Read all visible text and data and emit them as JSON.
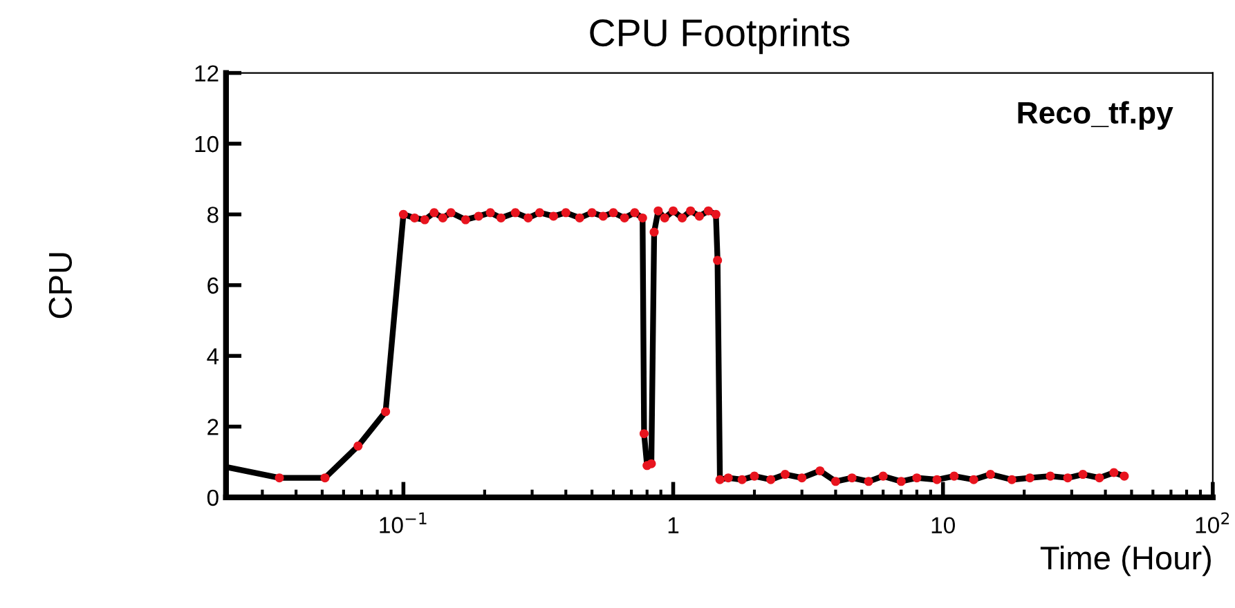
{
  "chart_data": {
    "type": "line",
    "title": "CPU Footprints",
    "xlabel": "Time (Hour)",
    "ylabel": "CPU",
    "log": "x",
    "xlim": [
      0.022,
      100
    ],
    "xticks": [
      {
        "value": 0.1,
        "label": "10$^{−1}$"
      },
      1,
      10,
      {
        "value": 100,
        "label": "10$^{2}$"
      }
    ],
    "ylim": [
      0,
      12
    ],
    "yticks": [
      0,
      2,
      4,
      6,
      8,
      10,
      12
    ],
    "grid": false,
    "legend": false,
    "annotations": [
      "Reco_tf.py"
    ],
    "series": [
      {
        "type": "line",
        "color": "#000000",
        "marker": "none",
        "line_style": "solid",
        "x": [
          0.022,
          0.0347,
          0.0512,
          0.0679,
          0.0859,
          0.1,
          0.11,
          0.12,
          0.13,
          0.14,
          0.15,
          0.17,
          0.19,
          0.21,
          0.23,
          0.26,
          0.29,
          0.32,
          0.36,
          0.4,
          0.45,
          0.5,
          0.55,
          0.6,
          0.66,
          0.72,
          0.77,
          0.78,
          0.8,
          0.83,
          0.85,
          0.88,
          0.93,
          1.0,
          1.08,
          1.16,
          1.25,
          1.35,
          1.44,
          1.46,
          1.49,
          1.6,
          1.8,
          2.0,
          2.3,
          2.6,
          3.0,
          3.5,
          4.0,
          4.6,
          5.3,
          6,
          7,
          8,
          9.5,
          11,
          13,
          15,
          18,
          21,
          25,
          29,
          33,
          38,
          43,
          47
        ],
        "values": [
          0.86,
          0.55,
          0.55,
          1.45,
          2.42,
          8.0,
          7.9,
          7.85,
          8.05,
          7.9,
          8.05,
          7.85,
          7.95,
          8.05,
          7.9,
          8.05,
          7.9,
          8.05,
          7.95,
          8.05,
          7.9,
          8.05,
          7.95,
          8.05,
          7.9,
          8.05,
          7.9,
          1.8,
          0.9,
          0.95,
          7.5,
          8.1,
          7.9,
          8.1,
          7.9,
          8.1,
          7.95,
          8.1,
          8.0,
          6.7,
          0.5,
          0.55,
          0.5,
          0.6,
          0.5,
          0.65,
          0.55,
          0.75,
          0.45,
          0.55,
          0.45,
          0.6,
          0.45,
          0.55,
          0.5,
          0.6,
          0.5,
          0.65,
          0.5,
          0.55,
          0.6,
          0.55,
          0.65,
          0.55,
          0.7,
          0.6
        ]
      },
      {
        "type": "scatter",
        "color": "#e8141e",
        "marker": "circle",
        "x": [
          0.0347,
          0.0512,
          0.0679,
          0.0859,
          0.1,
          0.11,
          0.12,
          0.13,
          0.14,
          0.15,
          0.17,
          0.19,
          0.21,
          0.23,
          0.26,
          0.29,
          0.32,
          0.36,
          0.4,
          0.45,
          0.5,
          0.55,
          0.6,
          0.66,
          0.72,
          0.77,
          0.78,
          0.8,
          0.83,
          0.85,
          0.88,
          0.93,
          1.0,
          1.08,
          1.16,
          1.25,
          1.35,
          1.44,
          1.46,
          1.49,
          1.6,
          1.8,
          2.0,
          2.3,
          2.6,
          3.0,
          3.5,
          4.0,
          4.6,
          5.3,
          6,
          7,
          8,
          9.5,
          11,
          13,
          15,
          18,
          21,
          25,
          29,
          33,
          38,
          43,
          47
        ],
        "values": [
          0.55,
          0.55,
          1.45,
          2.42,
          8.0,
          7.9,
          7.85,
          8.05,
          7.9,
          8.05,
          7.85,
          7.95,
          8.05,
          7.9,
          8.05,
          7.9,
          8.05,
          7.95,
          8.05,
          7.9,
          8.05,
          7.95,
          8.05,
          7.9,
          8.05,
          7.9,
          1.8,
          0.9,
          0.95,
          7.5,
          8.1,
          7.9,
          8.1,
          7.9,
          8.1,
          7.95,
          8.1,
          8.0,
          6.7,
          0.5,
          0.55,
          0.5,
          0.6,
          0.5,
          0.65,
          0.55,
          0.75,
          0.45,
          0.55,
          0.45,
          0.6,
          0.45,
          0.55,
          0.5,
          0.6,
          0.5,
          0.65,
          0.5,
          0.55,
          0.6,
          0.55,
          0.65,
          0.55,
          0.7,
          0.6
        ]
      }
    ]
  }
}
